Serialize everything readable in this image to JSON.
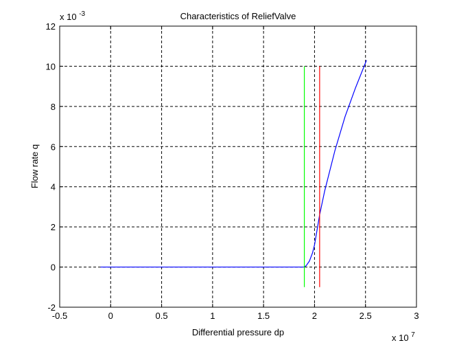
{
  "chart_data": {
    "type": "line",
    "title": "Characteristics of ReliefValve",
    "xlabel": "Differential pressure dp",
    "ylabel": "Flow rate q",
    "x_exponent_label": "x 10",
    "x_exponent_power": "7",
    "y_exponent_label": "x 10",
    "y_exponent_power": "-3",
    "xlim": [
      -0.5,
      3
    ],
    "ylim": [
      -2,
      12
    ],
    "x_ticks": [
      -0.5,
      0,
      0.5,
      1,
      1.5,
      2,
      2.5,
      3
    ],
    "x_tick_labels": [
      "-0.5",
      "0",
      "0.5",
      "1",
      "1.5",
      "2",
      "2.5",
      "3"
    ],
    "y_ticks": [
      -2,
      0,
      2,
      4,
      6,
      8,
      10,
      12
    ],
    "y_tick_labels": [
      "-2",
      "0",
      "2",
      "4",
      "6",
      "8",
      "10",
      "12"
    ],
    "grid": true,
    "grid_style": "dashed",
    "series": [
      {
        "color": "#0000ff",
        "x": [
          -0.1,
          0.5,
          1.0,
          1.5,
          1.9,
          1.92,
          1.95,
          1.98,
          2.0,
          2.02,
          2.04,
          2.05,
          2.1,
          2.2,
          2.3,
          2.4,
          2.51
        ],
        "y": [
          0,
          0,
          0,
          0,
          0,
          0.08,
          0.3,
          0.7,
          1.1,
          1.7,
          2.3,
          2.6,
          3.8,
          5.8,
          7.5,
          8.9,
          10.3
        ]
      },
      {
        "color": "#00ff00",
        "x": [
          1.9,
          1.9
        ],
        "y": [
          -1,
          10
        ]
      },
      {
        "color": "#ff0000",
        "x": [
          2.05,
          2.05
        ],
        "y": [
          -1,
          10
        ]
      }
    ]
  }
}
